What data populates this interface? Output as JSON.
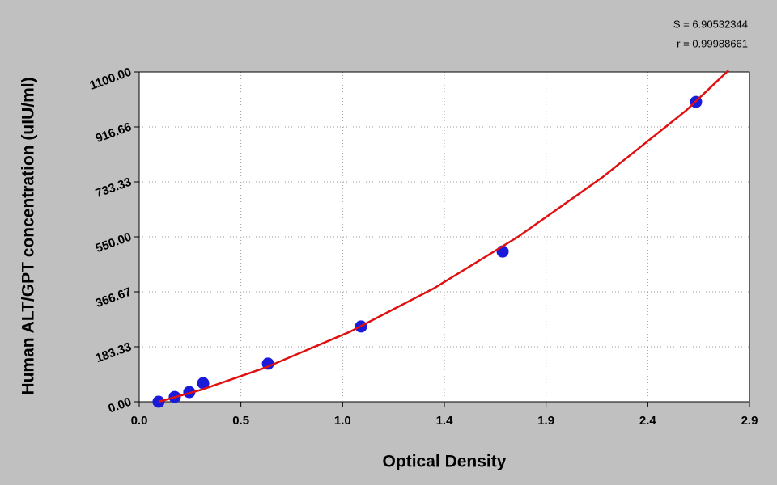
{
  "chart_data": {
    "type": "scatter",
    "x_label": "Optical Density",
    "y_label": "Human ALT/GPT  concentration (uIU/ml)",
    "annotations": [
      "S = 6.90532344",
      "r = 0.99988661"
    ],
    "xlim": [
      0,
      2.9
    ],
    "xticks": [
      {
        "value": 0,
        "label": "0.0"
      },
      {
        "value": 0.4833,
        "label": "0.5"
      },
      {
        "value": 0.9667,
        "label": "1.0"
      },
      {
        "value": 1.45,
        "label": "1.4"
      },
      {
        "value": 1.9333,
        "label": "1.9"
      },
      {
        "value": 2.4167,
        "label": "2.4"
      },
      {
        "value": 2.9,
        "label": "2.9"
      }
    ],
    "ylim": [
      0,
      1100
    ],
    "yticks": [
      {
        "value": 0,
        "label": "0.00"
      },
      183.33,
      366.67,
      {
        "value": 550,
        "label": "550.00"
      },
      733.33,
      916.66,
      {
        "value": 1100,
        "label": "1100.00"
      }
    ],
    "grid": true,
    "series": [
      {
        "type": "scatter",
        "color": "#1a1adb",
        "x": [
          0.092,
          0.169,
          0.238,
          0.304,
          0.612,
          1.054,
          1.727,
          2.646
        ],
        "values": [
          0,
          16,
          32,
          62,
          127,
          251,
          501,
          1000
        ]
      },
      {
        "type": "line",
        "color": "#e01010",
        "x": [
          0.092,
          0.3,
          0.6,
          1.0,
          1.4,
          1.8,
          2.2,
          2.6,
          2.8
        ],
        "values": [
          0,
          41,
          114,
          233,
          378,
          550,
          748,
          972,
          1105
        ]
      }
    ]
  }
}
